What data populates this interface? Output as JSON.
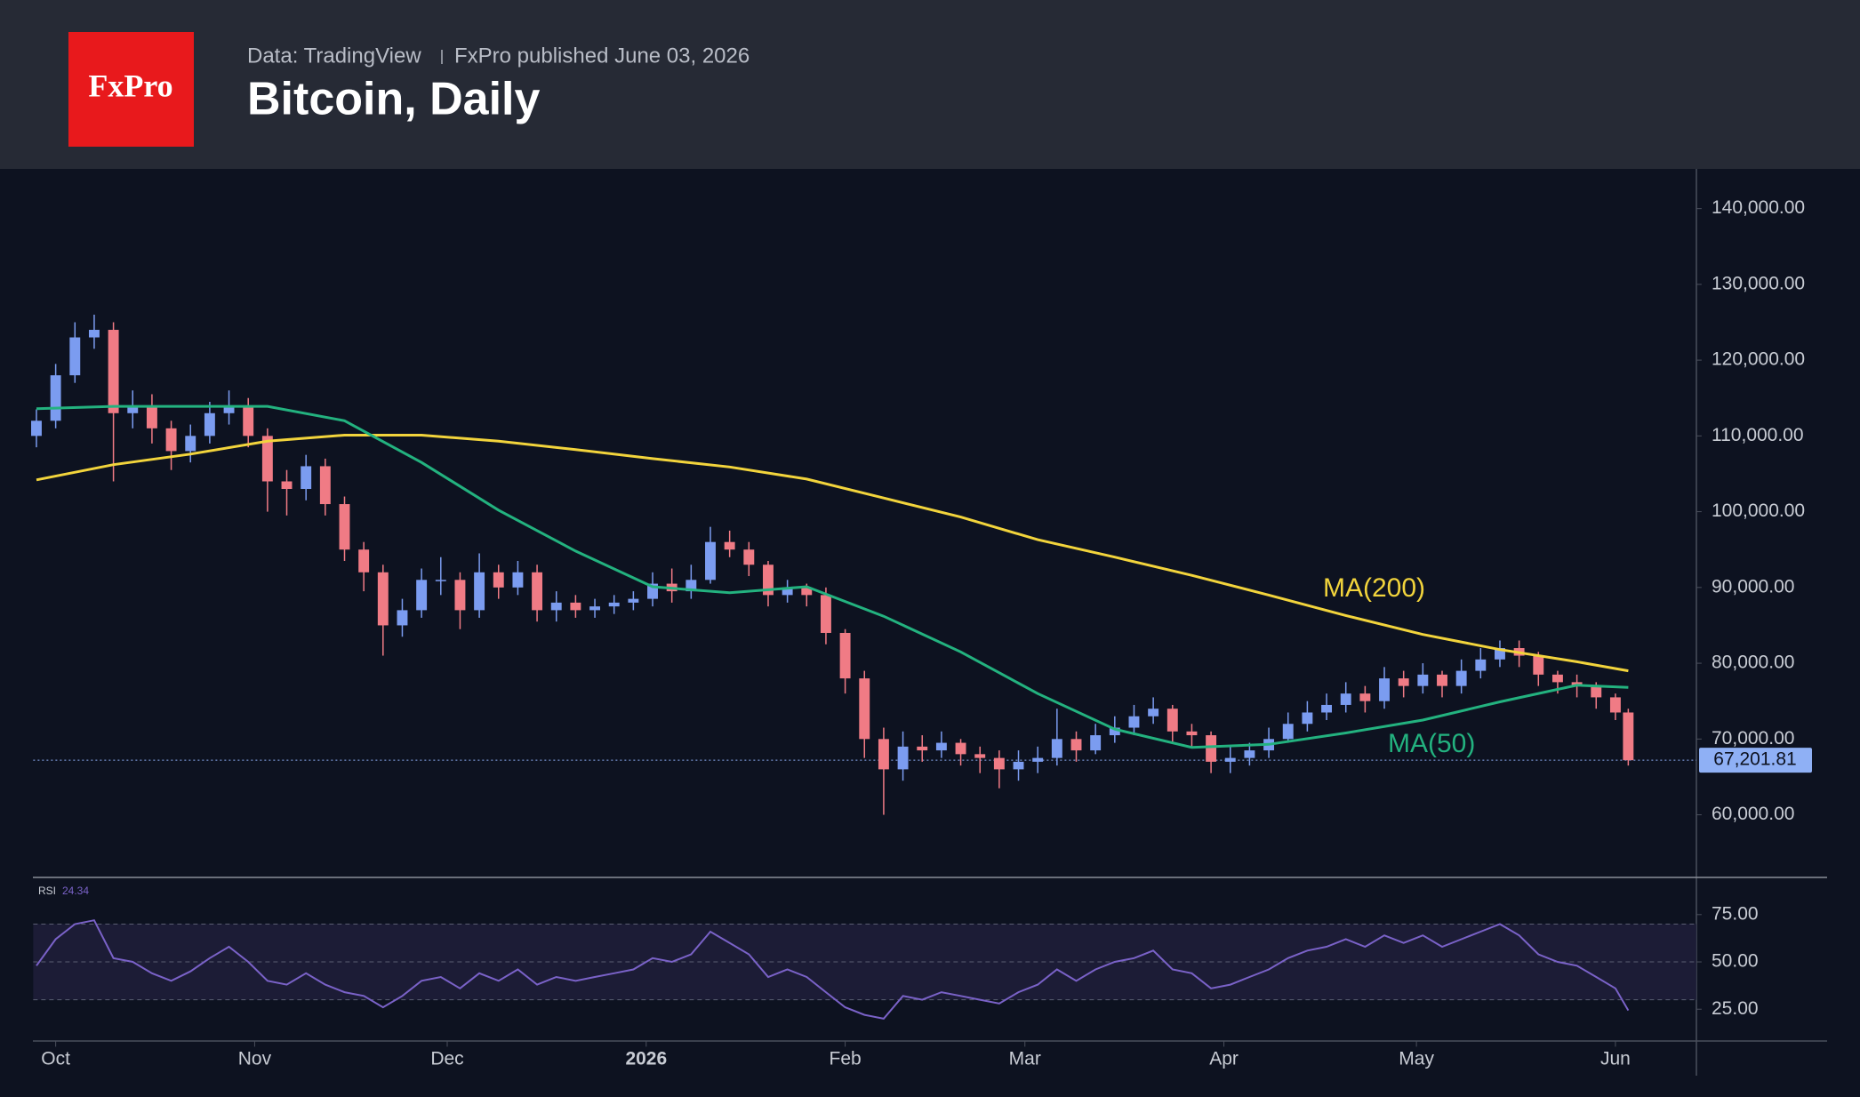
{
  "chart_data": {
    "type": "candlestick",
    "logo": "FxPro",
    "source": "Data: TradingView",
    "subtitle": "FxPro published June 03, 2026",
    "title": "Bitcoin, Daily",
    "color_up": "#7b9cf0",
    "color_down": "#f07b85",
    "xlim": [
      -0.5,
      258.6
    ],
    "ylim": [
      51700,
      145300
    ],
    "xticks": [
      {
        "value": 3,
        "label": "Oct"
      },
      {
        "value": 34,
        "label": "Nov"
      },
      {
        "value": 64,
        "label": "Dec"
      },
      {
        "value": 95,
        "label": "2026"
      },
      {
        "value": 126,
        "label": "Feb"
      },
      {
        "value": 154,
        "label": "Mar"
      },
      {
        "value": 185,
        "label": "Apr"
      },
      {
        "value": 215,
        "label": "May"
      },
      {
        "value": 246,
        "label": "Jun"
      }
    ],
    "yticks": [
      {
        "value": 60000,
        "label": "60,000.00"
      },
      {
        "value": 70000,
        "label": "70,000.00"
      },
      {
        "value": 80000,
        "label": "80,000.00"
      },
      {
        "value": 90000,
        "label": "90,000.00"
      },
      {
        "value": 100000,
        "label": "100,000.00"
      },
      {
        "value": 110000,
        "label": "110,000.00"
      },
      {
        "value": 120000,
        "label": "120,000.00"
      },
      {
        "value": 130000,
        "label": "130,000.00"
      },
      {
        "value": 140000,
        "label": "140,000.00"
      }
    ],
    "x": [
      0,
      3,
      6,
      9,
      12,
      15,
      18,
      21,
      24,
      27,
      30,
      33,
      36,
      39,
      42,
      45,
      48,
      51,
      54,
      57,
      60,
      63,
      66,
      69,
      72,
      75,
      78,
      81,
      84,
      87,
      90,
      93,
      96,
      99,
      102,
      105,
      108,
      111,
      114,
      117,
      120,
      123,
      126,
      129,
      132,
      135,
      138,
      141,
      144,
      147,
      150,
      153,
      156,
      159,
      162,
      165,
      168,
      171,
      174,
      177,
      180,
      183,
      186,
      189,
      192,
      195,
      198,
      201,
      204,
      207,
      210,
      213,
      216,
      219,
      222,
      225,
      228,
      231,
      234,
      237,
      240,
      243,
      246,
      248
    ],
    "open": [
      110000,
      112000,
      118000,
      123000,
      124000,
      113000,
      114000,
      111000,
      108000,
      110000,
      113000,
      114000,
      110000,
      104000,
      103000,
      106000,
      101000,
      95000,
      92000,
      85000,
      87000,
      91000,
      91000,
      87000,
      92000,
      90000,
      92000,
      87000,
      88000,
      87000,
      87500,
      88000,
      88500,
      90500,
      89500,
      91000,
      96000,
      95000,
      93000,
      89000,
      90000,
      89000,
      84000,
      78000,
      70000,
      66000,
      69000,
      68500,
      69500,
      68000,
      67500,
      66000,
      67000,
      67500,
      70000,
      68500,
      70500,
      71500,
      73000,
      74000,
      71000,
      70500,
      67000,
      67500,
      68500,
      70000,
      72000,
      73500,
      74500,
      76000,
      75000,
      78000,
      77000,
      78500,
      77000,
      79000,
      80500,
      82000,
      81000,
      78500,
      77500,
      77000,
      75500,
      73500
    ],
    "high": [
      113500,
      119500,
      125000,
      126000,
      125000,
      116000,
      115500,
      112000,
      111500,
      114500,
      116000,
      115000,
      111000,
      105500,
      107500,
      107000,
      102000,
      96000,
      93000,
      88500,
      92500,
      94000,
      92000,
      94500,
      93000,
      93500,
      93000,
      89500,
      89000,
      88500,
      89000,
      89500,
      92000,
      92500,
      93000,
      98000,
      97500,
      96000,
      93500,
      91000,
      90500,
      90000,
      84500,
      79000,
      71500,
      71000,
      70500,
      71000,
      70000,
      69000,
      68500,
      68500,
      69000,
      74000,
      71000,
      72000,
      73000,
      74500,
      75500,
      74500,
      72000,
      71000,
      69000,
      69500,
      71500,
      73500,
      75000,
      76000,
      77500,
      77000,
      79500,
      79000,
      80000,
      79000,
      80500,
      82000,
      83000,
      83000,
      81500,
      79000,
      78500,
      77500,
      76000,
      74000
    ],
    "low": [
      108500,
      111000,
      117000,
      121500,
      104000,
      111000,
      109000,
      105500,
      106500,
      109000,
      111500,
      108500,
      100000,
      99500,
      101500,
      99500,
      93500,
      89500,
      81000,
      83500,
      86000,
      89000,
      84500,
      86000,
      88500,
      89000,
      85500,
      85500,
      86000,
      86000,
      86500,
      87000,
      87500,
      88000,
      88500,
      90500,
      94000,
      91500,
      87500,
      88000,
      87500,
      82500,
      76000,
      67500,
      60000,
      64500,
      67000,
      67500,
      66500,
      65500,
      63500,
      64500,
      65500,
      66500,
      67000,
      68000,
      69500,
      70500,
      72000,
      69500,
      69000,
      65500,
      65500,
      66500,
      67500,
      69500,
      71000,
      72500,
      73500,
      73500,
      74000,
      75500,
      76000,
      75500,
      76000,
      78000,
      79500,
      79500,
      77000,
      76000,
      75500,
      74000,
      72500,
      66500
    ],
    "close": [
      112000,
      118000,
      123000,
      124000,
      113000,
      114000,
      111000,
      108000,
      110000,
      113000,
      114000,
      110000,
      104000,
      103000,
      106000,
      101000,
      95000,
      92000,
      85000,
      87000,
      91000,
      91000,
      87000,
      92000,
      90000,
      92000,
      87000,
      88000,
      87000,
      87500,
      88000,
      88500,
      90500,
      89500,
      91000,
      96000,
      95000,
      93000,
      89000,
      90000,
      89000,
      84000,
      78000,
      70000,
      66000,
      69000,
      68500,
      69500,
      68000,
      67500,
      66000,
      67000,
      67500,
      70000,
      68500,
      70500,
      71500,
      73000,
      74000,
      71000,
      70500,
      67000,
      67500,
      68500,
      70000,
      72000,
      73500,
      74500,
      76000,
      75000,
      78000,
      77000,
      78500,
      77000,
      79000,
      80500,
      82000,
      81000,
      78500,
      77500,
      77000,
      75500,
      73500,
      67201.81
    ],
    "last_price": {
      "value": 67201.81,
      "label": "67,201.81"
    },
    "series": [
      {
        "name": "MA(200)",
        "color": "#f2d43c",
        "x": [
          0,
          12,
          24,
          36,
          48,
          60,
          72,
          84,
          96,
          108,
          120,
          132,
          144,
          156,
          168,
          180,
          192,
          204,
          216,
          228,
          240,
          248
        ],
        "values": [
          104200,
          106200,
          107600,
          109300,
          110100,
          110100,
          109300,
          108200,
          107000,
          105900,
          104300,
          101800,
          99300,
          96300,
          94000,
          91600,
          89000,
          86300,
          83800,
          81800,
          80200,
          79000
        ]
      },
      {
        "name": "MA(50)",
        "color": "#23b27f",
        "x": [
          0,
          12,
          24,
          36,
          48,
          60,
          72,
          84,
          96,
          108,
          120,
          132,
          144,
          156,
          168,
          180,
          192,
          204,
          216,
          228,
          240,
          248
        ],
        "values": [
          113600,
          113900,
          113900,
          113900,
          112000,
          106500,
          100200,
          94800,
          90100,
          89300,
          90100,
          86200,
          81500,
          76000,
          71300,
          68900,
          69300,
          70800,
          72500,
          74900,
          77100,
          76800
        ]
      }
    ],
    "rsi": {
      "name": "RSI",
      "color": "#7a62c8",
      "ylim": [
        8,
        92
      ],
      "bands": [
        30,
        50,
        70
      ],
      "yticks": [
        {
          "value": 25,
          "label": "25.00"
        },
        {
          "value": 50,
          "label": "50.00"
        },
        {
          "value": 75,
          "label": "75.00"
        }
      ],
      "values": [
        48,
        62,
        70,
        72,
        52,
        50,
        44,
        40,
        45,
        52,
        58,
        50,
        40,
        38,
        44,
        38,
        34,
        32,
        26,
        32,
        40,
        42,
        36,
        44,
        40,
        46,
        38,
        42,
        40,
        42,
        44,
        46,
        52,
        50,
        54,
        66,
        60,
        54,
        42,
        46,
        42,
        34,
        26,
        22,
        20,
        32,
        30,
        34,
        32,
        30,
        28,
        34,
        38,
        46,
        40,
        46,
        50,
        52,
        56,
        46,
        44,
        36,
        38,
        42,
        46,
        52,
        56,
        58,
        62,
        58,
        64,
        60,
        64,
        58,
        62,
        66,
        70,
        64,
        54,
        50,
        48,
        42,
        36,
        24.34
      ]
    }
  }
}
